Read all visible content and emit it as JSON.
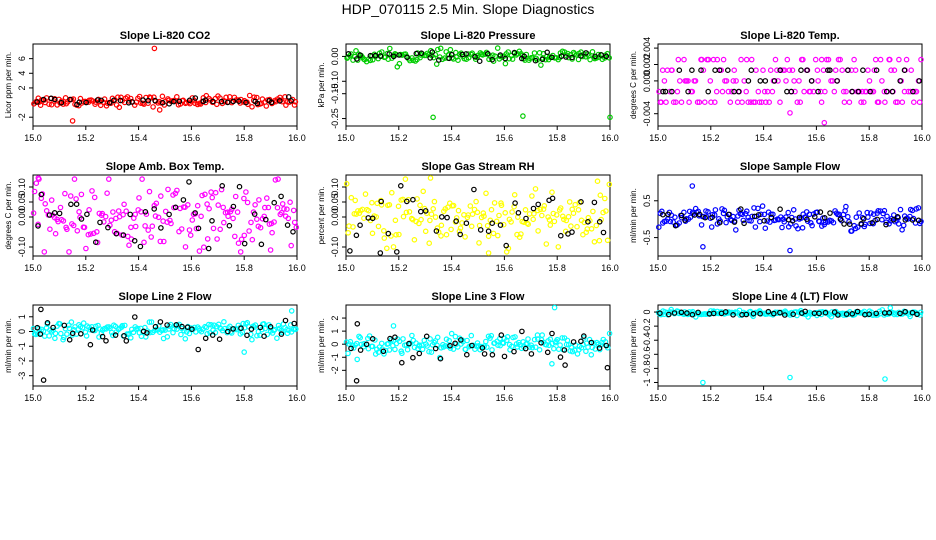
{
  "title": "HDP_070115  2.5 Min. Slope Diagnostics",
  "chart_data": [
    {
      "type": "scatter",
      "title": "Slope Li-820 CO2",
      "ylabel": "Licor ppm per min.",
      "xlim": [
        15.0,
        16.0
      ],
      "ylim": [
        -3.2,
        8.0
      ],
      "x_ticks": [
        "15.0",
        "15.2",
        "15.4",
        "15.6",
        "15.8",
        "16.0"
      ],
      "y_ticks": [
        {
          "v": -2,
          "t": "-2"
        },
        {
          "v": 2,
          "t": "2"
        },
        {
          "v": 4,
          "t": "4"
        },
        {
          "v": 6,
          "t": "6"
        }
      ],
      "series": [
        {
          "name": "series-1",
          "color": "#ff0000",
          "center": 0.2,
          "spread": 0.35,
          "count": 160,
          "outliers": [
            [
              15.46,
              7.4
            ],
            [
              15.15,
              -2.5
            ],
            [
              15.48,
              -1.0
            ],
            [
              15.02,
              0.6
            ]
          ]
        },
        {
          "name": "series-2",
          "color": "#000000",
          "center": 0.2,
          "spread": 0.2,
          "count": 40,
          "outliers": []
        }
      ]
    },
    {
      "type": "scatter",
      "title": "Slope Li-820 Pressure",
      "ylabel": "kPa per min.",
      "xlim": [
        15.0,
        16.0
      ],
      "ylim": [
        -0.28,
        0.05
      ],
      "x_ticks": [
        "15.0",
        "15.2",
        "15.4",
        "15.6",
        "15.8",
        "16.0"
      ],
      "y_ticks": [
        {
          "v": -0.25,
          "t": "-0.25"
        },
        {
          "v": -0.15,
          "t": "-0.15"
        },
        {
          "v": -0.1,
          "t": "-0.10"
        },
        {
          "v": 0,
          "t": "0.00"
        }
      ],
      "series": [
        {
          "name": "series-1",
          "color": "#00cc00",
          "center": 0.0,
          "spread": 0.012,
          "count": 170,
          "outliers": [
            [
              15.33,
              -0.245
            ],
            [
              15.67,
              -0.24
            ],
            [
              16.0,
              -0.245
            ]
          ]
        },
        {
          "name": "series-2",
          "color": "#000000",
          "center": 0.0,
          "spread": 0.008,
          "count": 40,
          "outliers": []
        }
      ]
    },
    {
      "type": "scatter",
      "title": "Slope Li-820 Temp.",
      "ylabel": "degrees C per min.",
      "xlim": [
        15.0,
        16.0
      ],
      "ylim": [
        -0.0055,
        0.0045
      ],
      "x_ticks": [
        "15.0",
        "15.2",
        "15.4",
        "15.6",
        "15.8",
        "16.0"
      ],
      "y_ticks": [
        {
          "v": -0.004,
          "t": "-0.004"
        },
        {
          "v": 0,
          "t": "0.000"
        },
        {
          "v": 0.002,
          "t": "0.002"
        },
        {
          "v": 0.004,
          "t": "0.004"
        }
      ],
      "series": [
        {
          "name": "series-1",
          "color": "#ff00ff",
          "levels": [
            -0.0026,
            -0.0013,
            0,
            0.0013,
            0.0026
          ],
          "count": 170,
          "outliers": [
            [
              15.63,
              -0.0051
            ],
            [
              15.62,
              0.0026
            ],
            [
              15.5,
              -0.0039
            ]
          ]
        },
        {
          "name": "series-2",
          "color": "#000000",
          "levels": [
            -0.0013,
            0,
            0.0013
          ],
          "count": 40,
          "outliers": []
        }
      ]
    },
    {
      "type": "scatter",
      "title": "Slope Amb. Box Temp.",
      "ylabel": "degrees C per min.",
      "xlim": [
        15.0,
        16.0
      ],
      "ylim": [
        -0.13,
        0.14
      ],
      "x_ticks": [
        "15.0",
        "15.2",
        "15.4",
        "15.6",
        "15.8",
        "16.0"
      ],
      "y_ticks": [
        {
          "v": -0.1,
          "t": "-0.10"
        },
        {
          "v": 0,
          "t": "0.00"
        },
        {
          "v": 0.05,
          "t": "0.05"
        },
        {
          "v": 0.1,
          "t": "0.10"
        }
      ],
      "series": [
        {
          "name": "series-1",
          "color": "#ff00ff",
          "center": 0.0,
          "spread": 0.055,
          "count": 180,
          "outliers": [
            [
              15.02,
              0.13
            ],
            [
              15.9,
              -0.11
            ]
          ]
        },
        {
          "name": "series-2",
          "color": "#000000",
          "center": 0.0,
          "spread": 0.05,
          "count": 40,
          "outliers": []
        }
      ]
    },
    {
      "type": "scatter",
      "title": "Slope Gas Stream RH",
      "ylabel": "percent per min.",
      "xlim": [
        15.0,
        16.0
      ],
      "ylim": [
        -0.13,
        0.14
      ],
      "x_ticks": [
        "15.0",
        "15.2",
        "15.4",
        "15.6",
        "15.8",
        "16.0"
      ],
      "y_ticks": [
        {
          "v": -0.1,
          "t": "-0.10"
        },
        {
          "v": 0,
          "t": "0.00"
        },
        {
          "v": 0.05,
          "t": "0.05"
        },
        {
          "v": 0.1,
          "t": "0.10"
        }
      ],
      "series": [
        {
          "name": "series-1",
          "color": "#ffff00",
          "center": 0.0,
          "spread": 0.05,
          "count": 180,
          "outliers": [
            [
              15.32,
              0.13
            ],
            [
              15.54,
              -0.12
            ]
          ]
        },
        {
          "name": "series-2",
          "color": "#000000",
          "center": 0.0,
          "spread": 0.05,
          "count": 40,
          "outliers": [
            [
              15.13,
              -0.12
            ]
          ]
        }
      ]
    },
    {
      "type": "scatter",
      "title": "Slope Sample Flow",
      "ylabel": "ml/min per min.",
      "xlim": [
        15.0,
        16.0
      ],
      "ylim": [
        -1.0,
        1.2
      ],
      "x_ticks": [
        "15.0",
        "15.2",
        "15.4",
        "15.6",
        "15.8",
        "16.0"
      ],
      "y_ticks": [
        {
          "v": -0.5,
          "t": "-0.5"
        },
        {
          "v": 0.5,
          "t": "0.5"
        }
      ],
      "series": [
        {
          "name": "series-1",
          "color": "#0000ff",
          "center": 0.0,
          "spread": 0.16,
          "count": 180,
          "outliers": [
            [
              15.13,
              0.9
            ],
            [
              15.5,
              -0.85
            ],
            [
              15.17,
              -0.75
            ]
          ]
        },
        {
          "name": "series-2",
          "color": "#000000",
          "center": 0.0,
          "spread": 0.12,
          "count": 40,
          "outliers": []
        }
      ]
    },
    {
      "type": "scatter",
      "title": "Slope Line 2 Flow",
      "ylabel": "ml/min per min.",
      "xlim": [
        15.0,
        16.0
      ],
      "ylim": [
        -3.7,
        1.8
      ],
      "x_ticks": [
        "15.0",
        "15.2",
        "15.4",
        "15.6",
        "15.8",
        "16.0"
      ],
      "y_ticks": [
        {
          "v": -3,
          "t": "-3"
        },
        {
          "v": -2,
          "t": "-2"
        },
        {
          "v": -1,
          "t": "-1"
        },
        {
          "v": 0,
          "t": "0"
        },
        {
          "v": 1,
          "t": "1"
        }
      ],
      "series": [
        {
          "name": "series-1",
          "color": "#00ffff",
          "center": 0.1,
          "spread": 0.25,
          "count": 190,
          "outliers": [
            [
              15.98,
              1.4
            ],
            [
              15.8,
              -1.4
            ]
          ]
        },
        {
          "name": "series-2",
          "color": "#000000",
          "center": 0.05,
          "spread": 0.45,
          "count": 40,
          "outliers": [
            [
              15.03,
              1.5
            ],
            [
              15.04,
              -3.3
            ]
          ]
        }
      ]
    },
    {
      "type": "scatter",
      "title": "Slope Line 3 Flow",
      "ylabel": "ml/min per min.",
      "xlim": [
        15.0,
        16.0
      ],
      "ylim": [
        -3.2,
        3.0
      ],
      "x_ticks": [
        "15.0",
        "15.2",
        "15.4",
        "15.6",
        "15.8",
        "16.0"
      ],
      "y_ticks": [
        {
          "v": -2,
          "t": "-2"
        },
        {
          "v": -1,
          "t": "-1"
        },
        {
          "v": 0,
          "t": "0"
        },
        {
          "v": 1,
          "t": "1"
        },
        {
          "v": 2,
          "t": "2"
        }
      ],
      "series": [
        {
          "name": "series-1",
          "color": "#00ffff",
          "center": 0.0,
          "spread": 0.35,
          "count": 190,
          "outliers": [
            [
              15.79,
              2.8
            ],
            [
              15.78,
              -1.5
            ],
            [
              15.18,
              1.4
            ]
          ]
        },
        {
          "name": "series-2",
          "color": "#000000",
          "center": 0.0,
          "spread": 0.6,
          "count": 40,
          "outliers": [
            [
              15.04,
              -2.8
            ],
            [
              15.99,
              -1.8
            ],
            [
              15.83,
              -1.6
            ]
          ]
        }
      ]
    },
    {
      "type": "scatter",
      "title": "Slope Line 4 (LT) Flow",
      "ylabel": "ml/min per min.",
      "xlim": [
        15.0,
        16.0
      ],
      "ylim": [
        -1.05,
        0.1
      ],
      "x_ticks": [
        "15.0",
        "15.2",
        "15.4",
        "15.6",
        "15.8",
        "16.0"
      ],
      "y_ticks": [
        {
          "v": -1,
          "t": "-1"
        },
        {
          "v": -0.8,
          "t": "-0.8"
        },
        {
          "v": -0.6,
          "t": "-0.6"
        },
        {
          "v": -0.4,
          "t": "-0.4"
        },
        {
          "v": -0.2,
          "t": "-0.2"
        },
        {
          "v": 0,
          "t": "0"
        }
      ],
      "series": [
        {
          "name": "series-1",
          "color": "#00ffff",
          "center": -0.02,
          "spread": 0.02,
          "count": 190,
          "outliers": [
            [
              15.17,
              -1.0
            ],
            [
              15.5,
              -0.93
            ],
            [
              15.86,
              -0.95
            ],
            [
              15.88,
              0.06
            ]
          ]
        },
        {
          "name": "series-2",
          "color": "#000000",
          "center": -0.02,
          "spread": 0.015,
          "count": 40,
          "outliers": []
        }
      ]
    }
  ]
}
